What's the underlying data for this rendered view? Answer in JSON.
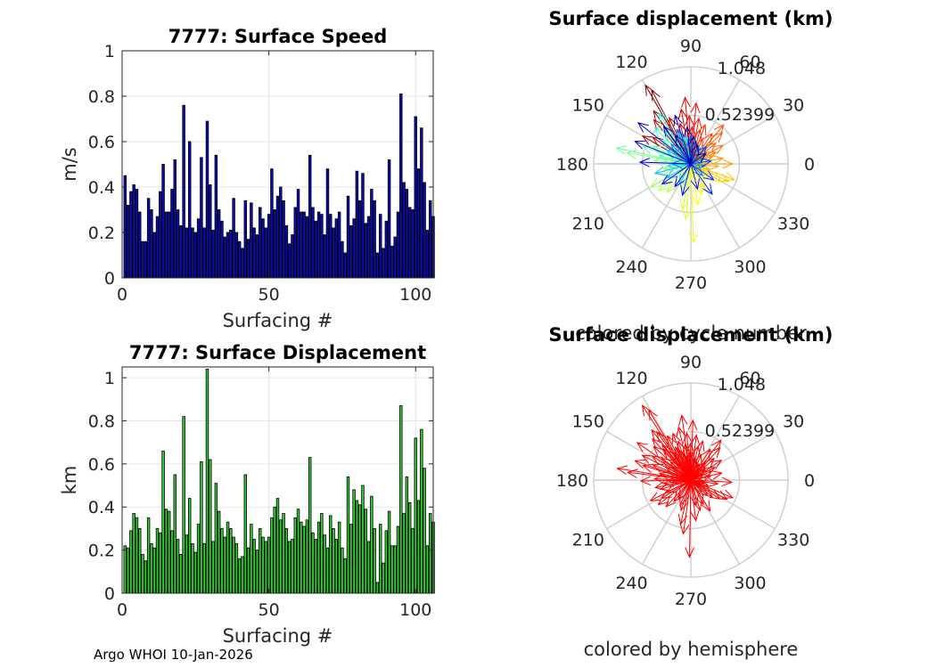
{
  "footer": "Argo WHOI 10-Jan-2026",
  "chart_data": [
    {
      "type": "bar",
      "title": "7777: Surface Speed",
      "xlabel": "Surfacing #",
      "ylabel": "m/s",
      "xlim": [
        0,
        106
      ],
      "ylim": [
        0,
        1
      ],
      "xticks": [
        "0",
        "50",
        "100"
      ],
      "yticks": [
        "0",
        "0.2",
        "0.4",
        "0.6",
        "0.8",
        "1"
      ],
      "bar_color": "#0b0bb4",
      "values": [
        0.45,
        0.32,
        0.38,
        0.41,
        0.39,
        0.29,
        0.16,
        0.16,
        0.35,
        0.3,
        0.2,
        0.27,
        0.38,
        0.5,
        0.29,
        0.29,
        0.39,
        0.52,
        0.3,
        0.23,
        0.76,
        0.22,
        0.6,
        0.22,
        0.2,
        0.26,
        0.53,
        0.22,
        0.69,
        0.41,
        0.21,
        0.54,
        0.3,
        0.25,
        0.18,
        0.2,
        0.21,
        0.35,
        0.2,
        0.16,
        0.13,
        0.34,
        0.17,
        0.33,
        0.22,
        0.19,
        0.31,
        0.26,
        0.22,
        0.28,
        0.48,
        0.3,
        0.36,
        0.4,
        0.34,
        0.23,
        0.15,
        0.19,
        0.31,
        0.39,
        0.29,
        0.29,
        0.27,
        0.54,
        0.31,
        0.25,
        0.29,
        0.28,
        0.19,
        0.48,
        0.28,
        0.22,
        0.26,
        0.29,
        0.16,
        0.11,
        0.36,
        0.23,
        0.26,
        0.47,
        0.34,
        0.46,
        0.24,
        0.27,
        0.39,
        0.34,
        0.11,
        0.28,
        0.13,
        0.25,
        0.52,
        0.14,
        0.18,
        0.29,
        0.81,
        0.42,
        0.39,
        0.31,
        0.3,
        0.71,
        0.48,
        0.66,
        0.42,
        0.21,
        0.34,
        0.27
      ]
    },
    {
      "type": "polar-quiver",
      "title": "Surface displacement (km)",
      "caption": "colored by cycle number",
      "rmax": 1.048,
      "rmid": 0.52399,
      "rlabels": [
        "1.048",
        "0.52399"
      ],
      "angle_labels": [
        "0",
        "30",
        "60",
        "90",
        "120",
        "150",
        "180",
        "210",
        "240",
        "270",
        "300",
        "330"
      ]
    },
    {
      "type": "bar",
      "title": "7777: Surface Displacement",
      "xlabel": "Surfacing #",
      "ylabel": "km",
      "xlim": [
        0,
        106
      ],
      "ylim": [
        0,
        1.05
      ],
      "xticks": [
        "0",
        "50",
        "100"
      ],
      "yticks": [
        "0",
        "0.2",
        "0.4",
        "0.6",
        "0.8",
        "1"
      ],
      "bar_color": "#33cc33",
      "values": [
        0.22,
        0.21,
        0.29,
        0.37,
        0.35,
        0.3,
        0.18,
        0.15,
        0.35,
        0.23,
        0.21,
        0.3,
        0.28,
        0.66,
        0.39,
        0.38,
        0.29,
        0.55,
        0.25,
        0.18,
        0.82,
        0.27,
        0.44,
        0.23,
        0.19,
        0.32,
        0.61,
        0.23,
        1.04,
        0.62,
        0.24,
        0.51,
        0.38,
        0.3,
        0.26,
        0.33,
        0.3,
        0.26,
        0.23,
        0.16,
        0.17,
        0.55,
        0.21,
        0.32,
        0.25,
        0.2,
        0.3,
        0.26,
        0.24,
        0.26,
        0.35,
        0.4,
        0.44,
        0.34,
        0.37,
        0.3,
        0.24,
        0.25,
        0.35,
        0.39,
        0.33,
        0.31,
        0.34,
        0.63,
        0.28,
        0.25,
        0.33,
        0.37,
        0.27,
        0.21,
        0.36,
        0.3,
        0.25,
        0.33,
        0.21,
        0.16,
        0.54,
        0.32,
        0.48,
        0.43,
        0.41,
        0.5,
        0.39,
        0.24,
        0.45,
        0.3,
        0.05,
        0.32,
        0.14,
        0.29,
        0.38,
        0.22,
        0.22,
        0.31,
        0.87,
        0.37,
        0.54,
        0.42,
        0.3,
        0.72,
        0.43,
        0.76,
        0.58,
        0.22,
        0.37,
        0.33
      ]
    },
    {
      "type": "polar-quiver",
      "title": "Surface displacement (km)",
      "caption": "colored by hemisphere",
      "rmax": 1.048,
      "rmid": 0.52399,
      "rlabels": [
        "1.048",
        "0.52399"
      ],
      "angle_labels": [
        "0",
        "30",
        "60",
        "90",
        "120",
        "150",
        "180",
        "210",
        "240",
        "270",
        "300",
        "330"
      ],
      "arrow_color": "#ff0000"
    }
  ]
}
